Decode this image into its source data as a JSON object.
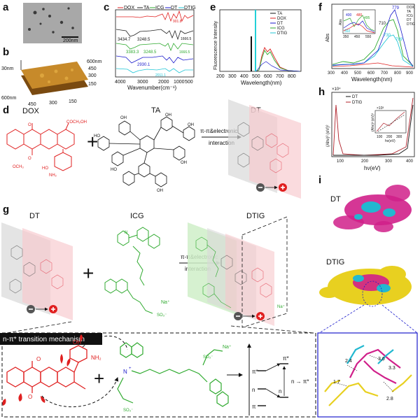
{
  "panels": {
    "a": {
      "label": "a",
      "scale_bar": "200nm"
    },
    "b": {
      "label": "b",
      "z_label": "30nm",
      "x_label": "600nm",
      "x_ticks": [
        "450",
        "300",
        "150"
      ],
      "y_ticks": [
        "450",
        "300",
        "150"
      ],
      "y_label": "600nm"
    },
    "c": {
      "label": "c",
      "legend": [
        "DOX",
        "TA",
        "ICG",
        "DT",
        "DTIG"
      ],
      "peaks": [
        "901.8",
        "3434.7",
        "3248.5",
        "1666.5",
        "3383.3",
        "3248.5",
        "1666.5",
        "2930.1",
        "2011.1"
      ],
      "xlabel": "Wavenumber(cm⁻¹)",
      "xticks": [
        "4000",
        "3000",
        "2000",
        "1000",
        "500"
      ]
    },
    "d": {
      "label": "d",
      "dox": "DOX",
      "ta": "TA",
      "dt": "DT",
      "interaction_line1": "π-π&electronic",
      "interaction_line2": "interaction",
      "plus": "+"
    },
    "e": {
      "label": "e",
      "ylabel": "Fluorescence Intensity",
      "xlabel": "Wavelength(nm)",
      "xticks": [
        "200",
        "300",
        "400",
        "500",
        "600",
        "700",
        "800"
      ],
      "legend": [
        "TA",
        "DOX",
        "DT",
        "ICG",
        "DTIG"
      ]
    },
    "f": {
      "label": "f",
      "ylabel": "Abs",
      "xlabel": "Wavelength(nm)",
      "xticks": [
        "300",
        "400",
        "500",
        "600",
        "700",
        "800",
        "900"
      ],
      "annot": [
        "710",
        "779",
        "730",
        "789"
      ],
      "legend": [
        "DOX",
        "TA",
        "ICG",
        "DT",
        "DTIG"
      ],
      "inset": {
        "ylabel": "Abs",
        "xticks": [
          "350",
          "450",
          "550"
        ],
        "annot": [
          "400",
          "480",
          "495",
          "392"
        ]
      }
    },
    "g": {
      "label": "g",
      "dt": "DT",
      "icg": "ICG",
      "dtig": "DTIG",
      "interaction_line1": "π-π&electronic",
      "interaction_line2": "interaction",
      "plus": "+",
      "na": "Na⁺"
    },
    "h": {
      "label": "h",
      "exp": "×10⁴",
      "ylabel": "(Ahν)² (eV)²",
      "xlabel": "hν(eV)",
      "xticks": [
        "100",
        "200",
        "300",
        "400"
      ],
      "legend": [
        "DT",
        "DTIG"
      ],
      "inset": {
        "exp": "×10³",
        "ylabel": "(Ahν)² (eV)²",
        "xlabel": "hν(eV)",
        "xticks": [
          "100",
          "200",
          "300"
        ]
      }
    },
    "i": {
      "label": "i",
      "dt": "DT",
      "dtig": "DTIG",
      "distances": [
        "2.4",
        "3.6",
        "3.3",
        "1.7",
        "2.8"
      ]
    },
    "mechanism": {
      "title": "n-π* transition mechanism",
      "pi_star": "π*",
      "n": "n",
      "pi": "π",
      "transition": "n → π*",
      "na": "Na⁺",
      "nplus": "N",
      "plus": "+",
      "oh": "OH",
      "nh2": "NH₂"
    }
  },
  "colors": {
    "dox": "#e02020",
    "ta": "#222222",
    "icg": "#2faa2f",
    "dt": "#1a1acc",
    "dtig": "#22c6d6",
    "magenta": "#d0208a",
    "yellow": "#e8d020",
    "cyan": "#22b8d0"
  }
}
